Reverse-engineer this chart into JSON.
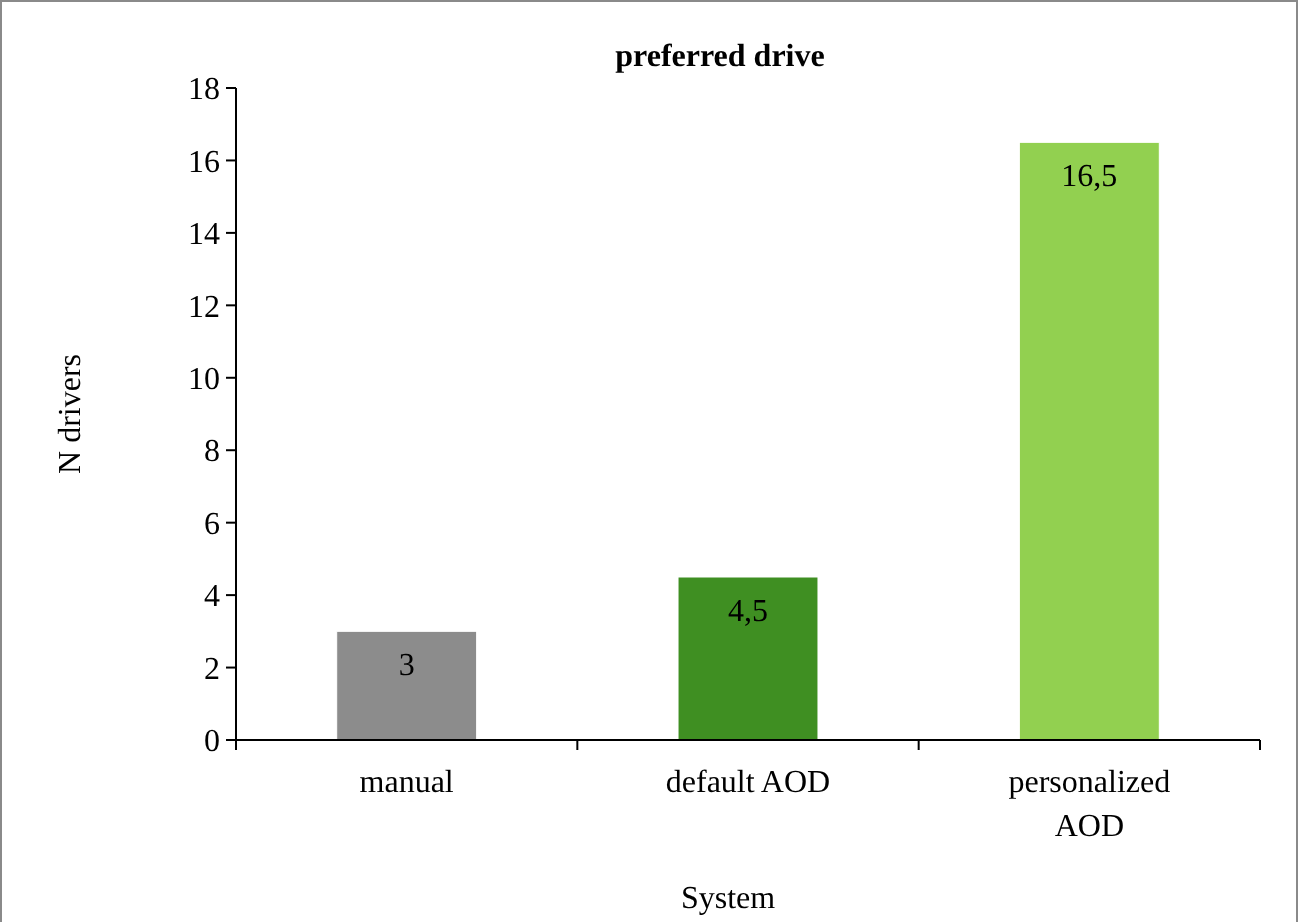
{
  "chart_data": {
    "type": "bar",
    "title": "preferred drive",
    "xlabel": "System",
    "ylabel": "N drivers",
    "categories": [
      "manual",
      "default AOD",
      "personalized AOD"
    ],
    "values": [
      3,
      4.5,
      16.5
    ],
    "colors": [
      "#8c8c8c",
      "#3f8f22",
      "#92d050"
    ],
    "value_labels": [
      "3",
      "4,5",
      "16,5"
    ],
    "ylim": [
      0,
      18
    ],
    "yticks": [
      0,
      2,
      4,
      6,
      8,
      10,
      12,
      14,
      16,
      18
    ],
    "grid": false
  }
}
